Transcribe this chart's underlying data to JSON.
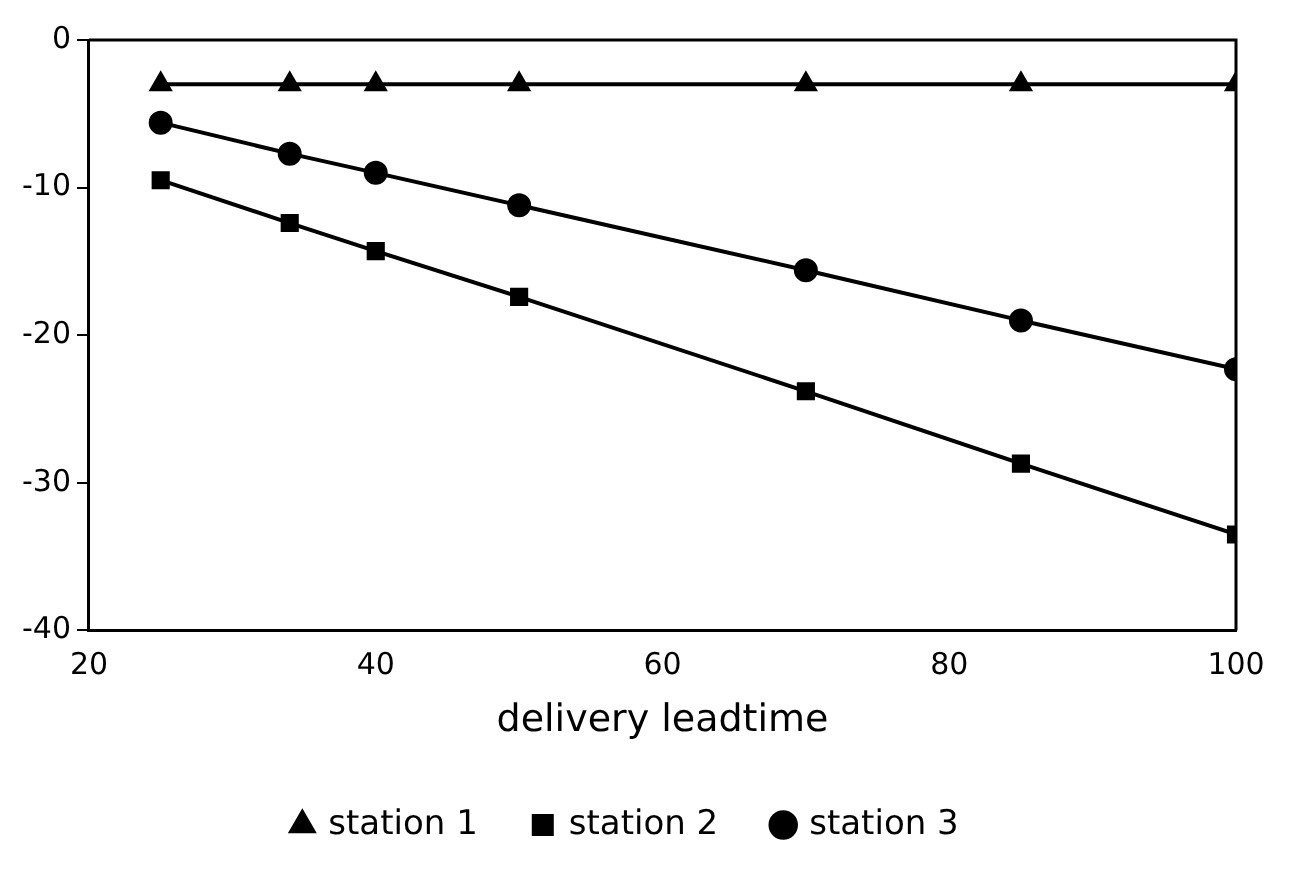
{
  "chart_data": {
    "type": "line",
    "xlabel": "delivery leadtime",
    "x": [
      25,
      34,
      40,
      50,
      70,
      85,
      100
    ],
    "xlim": [
      20,
      100
    ],
    "xticks": [
      20,
      40,
      60,
      80,
      100
    ],
    "ylim": [
      -40,
      0
    ],
    "yticks": [
      -40,
      -30,
      -20,
      -10,
      0
    ],
    "grid": false,
    "legend": "bottom",
    "line_style": "solid",
    "series": [
      {
        "name": "station 1",
        "color": "#000000",
        "marker": "triangle",
        "values": [
          -3,
          -3,
          -3,
          -3,
          -3,
          -3,
          -3
        ]
      },
      {
        "name": "station 2",
        "color": "#000000",
        "marker": "square",
        "values": [
          -9.5,
          -12.4,
          -14.3,
          -17.4,
          -23.8,
          -28.7,
          -33.5
        ]
      },
      {
        "name": "station 3",
        "color": "#000000",
        "marker": "circle",
        "values": [
          -5.6,
          -7.7,
          -9.0,
          -11.2,
          -15.6,
          -19.0,
          -22.3
        ]
      }
    ]
  }
}
